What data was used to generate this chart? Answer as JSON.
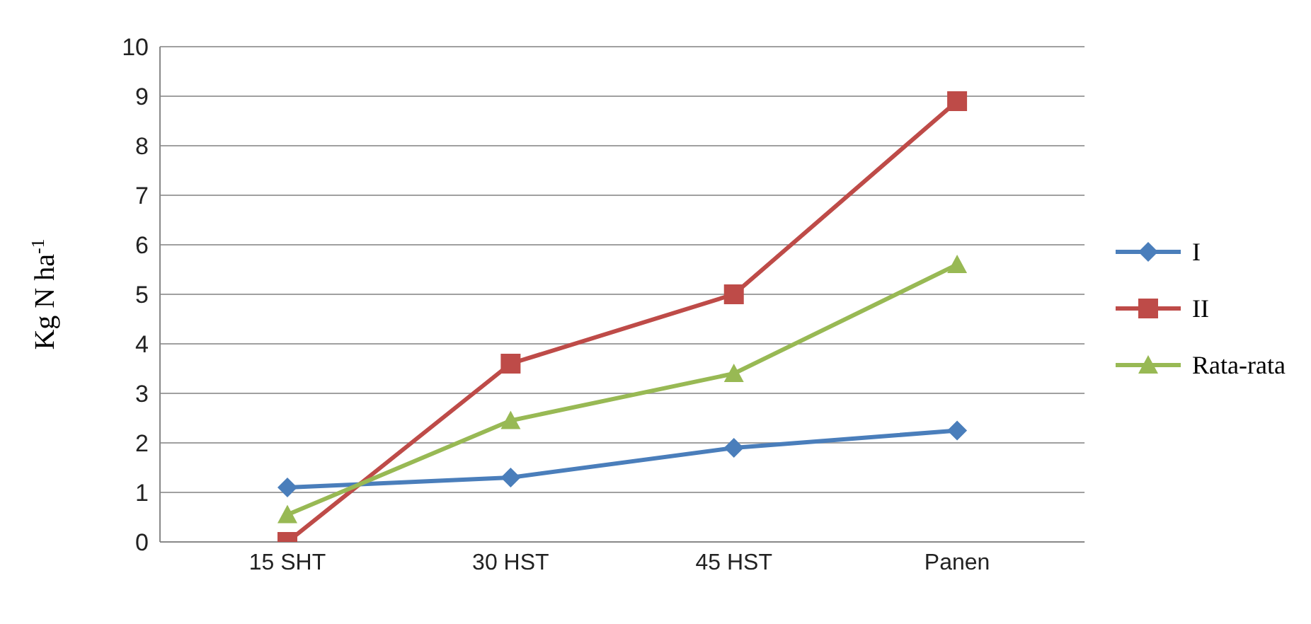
{
  "chart_data": {
    "type": "line",
    "ylabel": "Kg N ha$^{-1}$",
    "categories": [
      "15 SHT",
      "30 HST",
      "45 HST",
      "Panen"
    ],
    "series": [
      {
        "name": "I",
        "color": "#4a7ebb",
        "marker": "diamond",
        "values": [
          1.1,
          1.3,
          1.9,
          2.25
        ]
      },
      {
        "name": "II",
        "color": "#be4b48",
        "marker": "square",
        "values": [
          0,
          3.6,
          5.0,
          8.9
        ]
      },
      {
        "name": "Rata-rata",
        "color": "#98b954",
        "marker": "triangle",
        "values": [
          0.55,
          2.45,
          3.4,
          5.6
        ]
      }
    ],
    "ylim": [
      0,
      10
    ],
    "yticks": [
      0,
      1,
      2,
      3,
      4,
      5,
      6,
      7,
      8,
      9,
      10
    ],
    "grid": "y",
    "legend": "right",
    "line_style": "solid"
  }
}
